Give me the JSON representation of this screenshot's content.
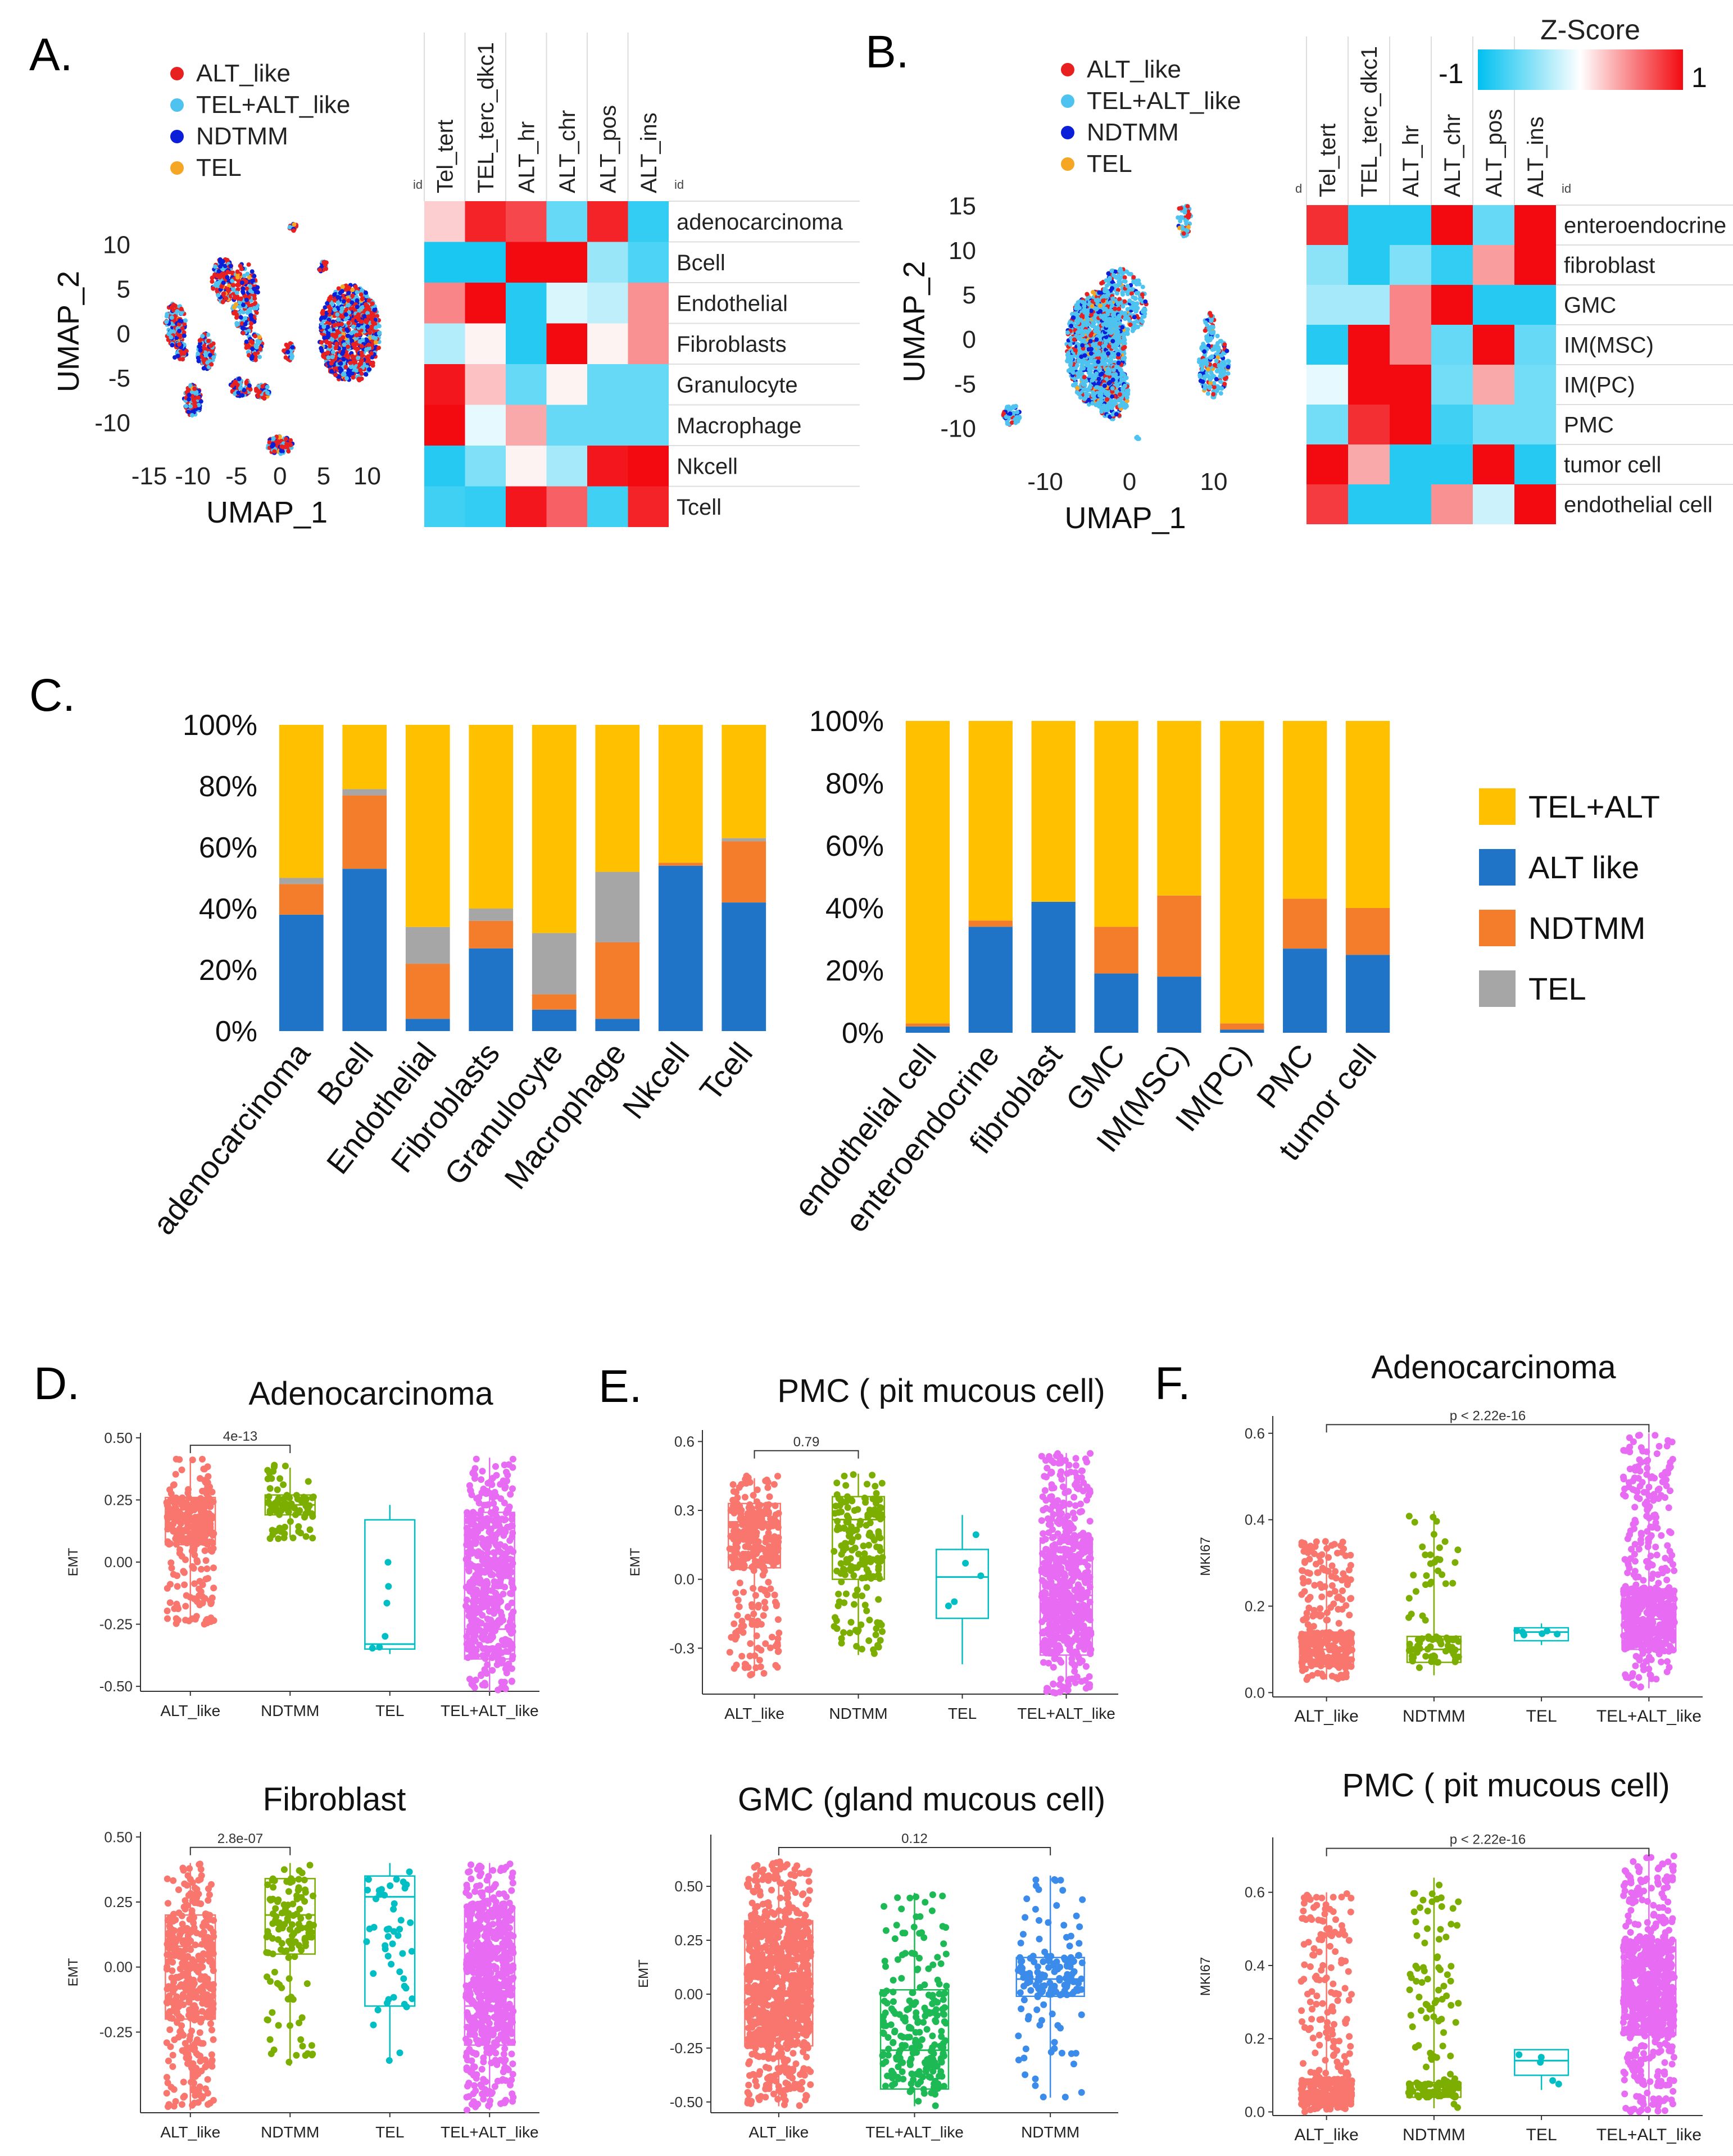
{
  "colors": {
    "alt": "#F8766D",
    "ndtmm": "#7CAE00",
    "tel": "#00BFC4",
    "telalt": "#E76BF3",
    "ndtmm_blue": "#3B8BEB",
    "bar_telalt": "#FFC000",
    "bar_alt": "#1F74C8",
    "bar_ndtmm": "#F47D2B",
    "bar_tel": "#A6A6A6",
    "u_red": "#E8201F",
    "u_light": "#4FC3F0",
    "u_blue": "#0B1ED8",
    "u_orange": "#F5A623",
    "hm_low": "#00C0F0",
    "hm_mid": "#FFFFFF",
    "hm_high": "#F20A10"
  },
  "panel_letters": {
    "a": "A.",
    "b": "B.",
    "c": "C.",
    "d": "D.",
    "e": "E.",
    "f": "F."
  },
  "umap_legend": [
    "ALT_like",
    "TEL+ALT_like",
    "NDTMM",
    "TEL"
  ],
  "umap_a": {
    "xlabel": "UMAP_1",
    "ylabel": "UMAP_2",
    "xticks": [
      -15,
      -10,
      -5,
      0,
      5,
      10
    ],
    "yticks": [
      10,
      5,
      0,
      -5,
      -10
    ]
  },
  "umap_b": {
    "xlabel": "UMAP_1",
    "ylabel": "UMAP_2",
    "xticks": [
      -10,
      0,
      10
    ],
    "yticks": [
      15,
      10,
      5,
      0,
      -5,
      -10
    ]
  },
  "zscore": {
    "title": "Z-Score",
    "low": "-1",
    "high": "1"
  },
  "heatmap_a": {
    "id_left": "id",
    "id_right": "id",
    "cols": [
      "Tel_tert",
      "TEL_terc_dkc1",
      "ALT_hr",
      "ALT_chr",
      "ALT_pos",
      "ALT_ins"
    ],
    "rows": [
      "adenocarcinoma",
      "Bcell",
      "Endothelial",
      "Fibroblasts",
      "Granulocyte",
      "Macrophage",
      "Nkcell",
      "Tcell"
    ],
    "values": [
      [
        0.2,
        0.9,
        0.75,
        -0.6,
        0.9,
        -0.8
      ],
      [
        -0.9,
        -0.9,
        1,
        1,
        -0.4,
        -0.7
      ],
      [
        0.5,
        1,
        -0.85,
        -0.15,
        -0.25,
        0.45
      ],
      [
        -0.3,
        0.05,
        -0.85,
        1,
        0.05,
        0.45
      ],
      [
        0.95,
        0.25,
        -0.6,
        0.05,
        -0.6,
        -0.6
      ],
      [
        1,
        -0.1,
        0.35,
        -0.6,
        -0.6,
        -0.6
      ],
      [
        -0.85,
        -0.5,
        0.05,
        -0.35,
        0.95,
        1
      ],
      [
        -0.75,
        -0.8,
        0.95,
        0.65,
        -0.75,
        0.9
      ]
    ]
  },
  "heatmap_b": {
    "id_left": "d",
    "id_right": "id",
    "cols": [
      "Tel_tert",
      "TEL_terc_dkc1",
      "ALT_hr",
      "ALT_chr",
      "ALT_pos",
      "ALT_ins"
    ],
    "rows": [
      "enteroendocrine",
      "fibroblast",
      "GMC",
      "IM(MSC)",
      "IM(PC)",
      "PMC",
      "tumor cell",
      "endothelial cell"
    ],
    "values": [
      [
        0.85,
        -0.85,
        -0.85,
        1,
        -0.6,
        1
      ],
      [
        -0.45,
        -0.85,
        -0.5,
        -0.8,
        0.4,
        1
      ],
      [
        -0.35,
        -0.35,
        0.5,
        1,
        -0.85,
        -0.85
      ],
      [
        -0.85,
        1,
        0.5,
        -0.6,
        1,
        -0.6
      ],
      [
        -0.1,
        1,
        1,
        -0.55,
        0.35,
        -0.55
      ],
      [
        -0.55,
        0.85,
        1,
        -0.75,
        -0.55,
        -0.55
      ],
      [
        1,
        0.35,
        -0.85,
        -0.85,
        1,
        -0.85
      ],
      [
        0.8,
        -0.85,
        -0.85,
        0.45,
        -0.2,
        1
      ]
    ]
  },
  "chart_data": [
    {
      "type": "bar",
      "id": "stacked_left",
      "categories": [
        "adenocarcinoma",
        "Bcell",
        "Endothelial",
        "Fibroblasts",
        "Granulocyte",
        "Macrophage",
        "Nkcell",
        "Tcell"
      ],
      "series": [
        {
          "name": "ALT like",
          "values": [
            38,
            53,
            4,
            27,
            7,
            4,
            54,
            42
          ]
        },
        {
          "name": "NDTMM",
          "values": [
            10,
            24,
            18,
            9,
            5,
            25,
            1,
            20
          ]
        },
        {
          "name": "TEL",
          "values": [
            2,
            2,
            12,
            4,
            20,
            23,
            0,
            1
          ]
        },
        {
          "name": "TEL+ALT",
          "values": [
            50,
            21,
            66,
            60,
            68,
            48,
            45,
            37
          ]
        }
      ],
      "yticks": [
        "0%",
        "20%",
        "40%",
        "60%",
        "80%",
        "100%"
      ],
      "ylim": [
        0,
        100
      ]
    },
    {
      "type": "bar",
      "id": "stacked_right",
      "categories": [
        "endothelial cell",
        "enteroendocrine",
        "fibroblast",
        "GMC",
        "IM(MSC)",
        "IM(PC)",
        "PMC",
        "tumor cell"
      ],
      "series": [
        {
          "name": "ALT like",
          "values": [
            2,
            34,
            42,
            19,
            18,
            1,
            27,
            25
          ]
        },
        {
          "name": "NDTMM",
          "values": [
            1,
            2,
            0,
            15,
            26,
            2,
            16,
            15
          ]
        },
        {
          "name": "TEL",
          "values": [
            0,
            0,
            0,
            0,
            0,
            0,
            0,
            0
          ]
        },
        {
          "name": "TEL+ALT",
          "values": [
            97,
            64,
            58,
            66,
            56,
            97,
            57,
            60
          ]
        }
      ],
      "yticks": [
        "0%",
        "20%",
        "40%",
        "60%",
        "80%",
        "100%"
      ],
      "ylim": [
        0,
        100
      ]
    },
    {
      "type": "scatter",
      "id": "D1",
      "title": "Adenocarcinoma",
      "ylabel": "EMT",
      "categories": [
        "ALT_like",
        "NDTMM",
        "TEL",
        "TEL+ALT_like"
      ],
      "ylim": [
        -0.52,
        0.52
      ],
      "yticks": [
        "0.50",
        "0.25",
        "0.00",
        "-0.25",
        "-0.50"
      ],
      "ytick_values": [
        0.5,
        0.25,
        0,
        -0.25,
        -0.5
      ],
      "bracket": {
        "from": 0,
        "to": 1,
        "label": "4e-13",
        "y": 0.47
      },
      "boxes": [
        {
          "q1": 0.07,
          "med": 0.17,
          "q3": 0.26,
          "lo": -0.22,
          "hi": 0.42,
          "min": -0.25,
          "max": 0.42,
          "n": 320
        },
        {
          "q1": 0.19,
          "med": 0.23,
          "q3": 0.27,
          "lo": 0.1,
          "hi": 0.38,
          "min": 0.09,
          "max": 0.4,
          "n": 80
        },
        {
          "q1": -0.35,
          "med": -0.33,
          "q3": 0.17,
          "lo": -0.37,
          "hi": 0.23,
          "min": -0.41,
          "max": 0.25,
          "n": 6
        },
        {
          "q1": -0.39,
          "med": -0.27,
          "q3": 0.2,
          "lo": -0.52,
          "hi": 0.42,
          "min": -0.52,
          "max": 0.42,
          "n": 520
        }
      ]
    },
    {
      "type": "scatter",
      "id": "E1",
      "title": "PMC ( pit mucous cell)",
      "ylabel": "EMT",
      "categories": [
        "ALT_like",
        "NDTMM",
        "TEL",
        "TEL+ALT_like"
      ],
      "ylim": [
        -0.5,
        0.65
      ],
      "yticks": [
        "0.6",
        "0.3",
        "0.0",
        "-0.3"
      ],
      "ytick_values": [
        0.6,
        0.3,
        0,
        -0.3
      ],
      "bracket": {
        "from": 0,
        "to": 1,
        "label": "0.79",
        "y": 0.56
      },
      "boxes": [
        {
          "q1": 0.05,
          "med": 0.25,
          "q3": 0.33,
          "lo": -0.42,
          "hi": 0.44,
          "min": -0.42,
          "max": 0.45,
          "n": 320
        },
        {
          "q1": 0.0,
          "med": 0.26,
          "q3": 0.36,
          "lo": -0.33,
          "hi": 0.46,
          "min": -0.33,
          "max": 0.46,
          "n": 180
        },
        {
          "q1": -0.17,
          "med": 0.01,
          "q3": 0.13,
          "lo": -0.37,
          "hi": 0.28,
          "min": -0.37,
          "max": 0.28,
          "n": 5
        },
        {
          "q1": -0.33,
          "med": -0.07,
          "q3": 0.18,
          "lo": -0.5,
          "hi": 0.55,
          "min": -0.5,
          "max": 0.55,
          "n": 600
        }
      ]
    },
    {
      "type": "scatter",
      "id": "F1",
      "title": "Adenocarcinoma",
      "ylabel": "MKI67",
      "categories": [
        "ALT_like",
        "NDTMM",
        "TEL",
        "TEL+ALT_like"
      ],
      "ylim": [
        -0.01,
        0.64
      ],
      "yticks": [
        "0.6",
        "0.4",
        "0.2",
        "0.0"
      ],
      "ytick_values": [
        0.6,
        0.4,
        0.2,
        0
      ],
      "bracket": {
        "from": 0,
        "to": 3,
        "label": "p < 2.22e-16",
        "y": 0.62
      },
      "boxes": [
        {
          "q1": 0.06,
          "med": 0.1,
          "q3": 0.14,
          "lo": 0.03,
          "hi": 0.35,
          "min": 0.03,
          "max": 0.35,
          "n": 320
        },
        {
          "q1": 0.07,
          "med": 0.1,
          "q3": 0.13,
          "lo": 0.04,
          "hi": 0.42,
          "min": 0.04,
          "max": 0.42,
          "n": 80
        },
        {
          "q1": 0.12,
          "med": 0.14,
          "q3": 0.15,
          "lo": 0.11,
          "hi": 0.16,
          "min": 0.11,
          "max": 0.16,
          "n": 6
        },
        {
          "q1": 0.1,
          "med": 0.17,
          "q3": 0.24,
          "lo": 0.01,
          "hi": 0.6,
          "min": 0.01,
          "max": 0.6,
          "n": 520
        }
      ]
    },
    {
      "type": "scatter",
      "id": "D2",
      "title": "Fibroblast",
      "ylabel": "EMT",
      "categories": [
        "ALT_like",
        "NDTMM",
        "TEL",
        "TEL+ALT_like"
      ],
      "ylim": [
        -0.56,
        0.52
      ],
      "yticks": [
        "0.50",
        "0.25",
        "0.00",
        "-0.25"
      ],
      "ytick_values": [
        0.5,
        0.25,
        0,
        -0.25
      ],
      "bracket": {
        "from": 0,
        "to": 1,
        "label": "2.8e-07",
        "y": 0.46
      },
      "boxes": [
        {
          "q1": -0.2,
          "med": 0.08,
          "q3": 0.2,
          "lo": -0.55,
          "hi": 0.4,
          "min": -0.55,
          "max": 0.4,
          "n": 420
        },
        {
          "q1": 0.05,
          "med": 0.2,
          "q3": 0.34,
          "lo": -0.38,
          "hi": 0.4,
          "min": -0.38,
          "max": 0.4,
          "n": 130
        },
        {
          "q1": -0.15,
          "med": 0.27,
          "q3": 0.35,
          "lo": -0.37,
          "hi": 0.4,
          "min": -0.37,
          "max": 0.4,
          "n": 50
        },
        {
          "q1": -0.3,
          "med": -0.15,
          "q3": 0.22,
          "lo": -0.55,
          "hi": 0.4,
          "min": -0.55,
          "max": 0.4,
          "n": 650
        }
      ]
    },
    {
      "type": "scatter",
      "id": "E2",
      "title": "GMC (gland mucous cell)",
      "ylabel": "EMT",
      "categories": [
        "ALT_like",
        "TEL+ALT_like",
        "NDTMM"
      ],
      "ylim": [
        -0.55,
        0.74
      ],
      "yticks": [
        "0.50",
        "0.25",
        "0.00",
        "-0.25",
        "-0.50"
      ],
      "ytick_values": [
        0.5,
        0.25,
        0,
        -0.25,
        -0.5
      ],
      "bracket": {
        "from": 0,
        "to": 2,
        "label": "0.12",
        "y": 0.68
      },
      "boxes": [
        {
          "q1": -0.24,
          "med": 0.07,
          "q3": 0.34,
          "lo": -0.52,
          "hi": 0.62,
          "min": -0.52,
          "max": 0.62,
          "n": 900
        },
        {
          "q1": -0.44,
          "med": -0.26,
          "q3": 0.02,
          "lo": -0.52,
          "hi": 0.47,
          "min": -0.52,
          "max": 0.47,
          "n": 230
        },
        {
          "q1": -0.01,
          "med": 0.07,
          "q3": 0.17,
          "lo": -0.48,
          "hi": 0.55,
          "min": -0.48,
          "max": 0.55,
          "n": 160
        }
      ]
    },
    {
      "type": "scatter",
      "id": "F2",
      "title": "PMC ( pit mucous cell)",
      "ylabel": "MKI67",
      "categories": [
        "ALT_like",
        "NDTMM",
        "TEL",
        "TEL+ALT_like"
      ],
      "ylim": [
        -0.01,
        0.75
      ],
      "yticks": [
        "0.6",
        "0.4",
        "0.2",
        "0.0"
      ],
      "ytick_values": [
        0.6,
        0.4,
        0.2,
        0
      ],
      "bracket": {
        "from": 0,
        "to": 3,
        "label": "p < 2.22e-16",
        "y": 0.72
      },
      "boxes": [
        {
          "q1": 0.02,
          "med": 0.05,
          "q3": 0.09,
          "lo": 0.0,
          "hi": 0.6,
          "min": 0.0,
          "max": 0.6,
          "n": 360
        },
        {
          "q1": 0.04,
          "med": 0.06,
          "q3": 0.08,
          "lo": 0.01,
          "hi": 0.64,
          "min": 0.01,
          "max": 0.64,
          "n": 150
        },
        {
          "q1": 0.1,
          "med": 0.14,
          "q3": 0.17,
          "lo": 0.06,
          "hi": 0.17,
          "min": 0.06,
          "max": 0.17,
          "n": 5
        },
        {
          "q1": 0.21,
          "med": 0.34,
          "q3": 0.47,
          "lo": 0.0,
          "hi": 0.7,
          "min": 0.0,
          "max": 0.7,
          "n": 700
        }
      ]
    }
  ],
  "bar_legend": [
    "TEL+ALT",
    "ALT like",
    "NDTMM",
    "TEL"
  ]
}
